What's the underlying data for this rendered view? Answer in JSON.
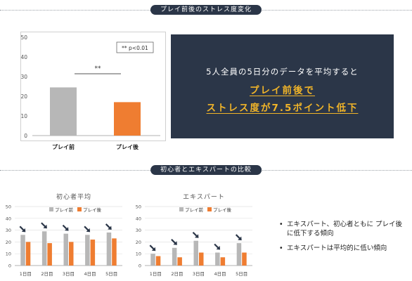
{
  "section1": {
    "title": "プレイ前後のストレス度変化"
  },
  "section2": {
    "title": "初心者とエキスパートの比較"
  },
  "highlight": {
    "line1": "5人全員の5日分のデータを平均すると",
    "line2": "プレイ前後で",
    "line3": "ストレス度が7.5ポイント低下"
  },
  "bullets": [
    "エキスパート、初心者ともに プレイ後に低下する傾向",
    "エキスパートは平均的に低い傾向"
  ],
  "colors": {
    "before": "#b7b7b7",
    "after": "#ef7d31",
    "dark": "#2b3648",
    "accent": "#f0b429"
  },
  "chart_data": [
    {
      "type": "bar",
      "title": "",
      "categories": [
        "プレイ前",
        "プレイ後"
      ],
      "values": [
        24.5,
        17
      ],
      "ylim": [
        0,
        50
      ],
      "yticks": [
        0,
        10,
        20,
        30,
        40,
        50
      ],
      "annotation": "** p<0.01",
      "significance_label": "**",
      "grid": false
    },
    {
      "type": "bar",
      "title": "初心者平均",
      "categories": [
        "1日目",
        "2日目",
        "3日目",
        "4日目",
        "5日目"
      ],
      "series": [
        {
          "name": "プレイ前",
          "values": [
            26,
            29,
            27,
            26,
            28
          ]
        },
        {
          "name": "プレイ後",
          "values": [
            20,
            19,
            20,
            22,
            23
          ]
        }
      ],
      "ylim": [
        0,
        50
      ],
      "yticks": [
        0,
        10,
        20,
        30,
        40,
        50
      ],
      "legend": "top",
      "grid": true
    },
    {
      "type": "bar",
      "title": "エキスパート",
      "categories": [
        "1日目",
        "2日目",
        "3日目",
        "4日目",
        "5日目"
      ],
      "series": [
        {
          "name": "プレイ前",
          "values": [
            10,
            15,
            21,
            11,
            19
          ]
        },
        {
          "name": "プレイ後",
          "values": [
            8,
            7,
            11,
            7,
            11
          ]
        }
      ],
      "ylim": [
        0,
        50
      ],
      "yticks": [
        0,
        10,
        20,
        30,
        40,
        50
      ],
      "legend": "top",
      "grid": true
    }
  ]
}
